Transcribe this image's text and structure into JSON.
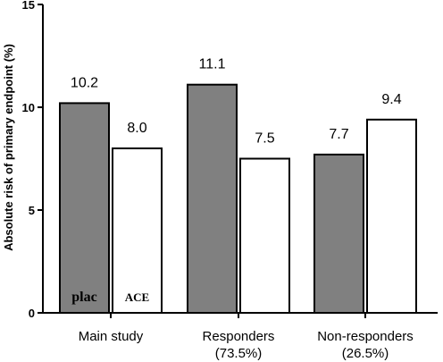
{
  "chart_data": {
    "type": "bar",
    "title": "",
    "xlabel": "",
    "ylabel": "Absolute risk of primary endpoint (%)",
    "ylim": [
      0,
      15
    ],
    "yticks": [
      0,
      5,
      10,
      15
    ],
    "grid": false,
    "categories": [
      {
        "line1": "Main study",
        "line2": ""
      },
      {
        "line1": "Responders",
        "line2": "(73.5%)"
      },
      {
        "line1": "Non-responders",
        "line2": "(26.5%)"
      }
    ],
    "series": [
      {
        "name": "plac",
        "values": [
          10.2,
          11.1,
          7.7
        ],
        "labels": [
          "10.2",
          "11.1",
          "7.7"
        ],
        "color": "#808080"
      },
      {
        "name": "ACE",
        "values": [
          8.0,
          7.5,
          9.4
        ],
        "labels": [
          "8.0",
          "7.5",
          "9.4"
        ],
        "color": "#ffffff"
      }
    ]
  }
}
